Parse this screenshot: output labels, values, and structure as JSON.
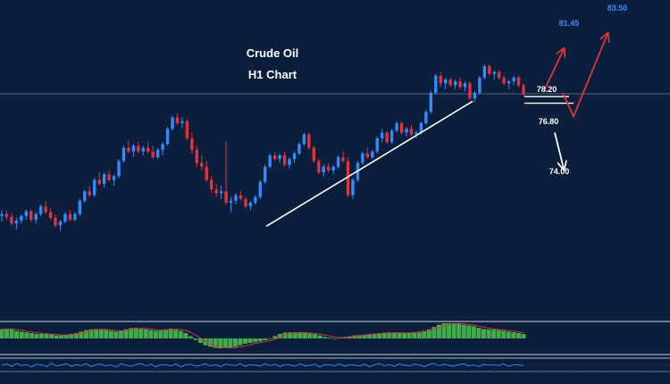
{
  "chart_data": {
    "type": "candlestick",
    "title": "Crude Oil",
    "subtitle": "H1 Chart",
    "colors": {
      "background": "#0b1f3d",
      "up_candle": "#2e8dff",
      "down_candle": "#e2323a",
      "trendline": "#ffffff",
      "bull_arrow": "#e2323a",
      "bear_arrow": "#ffffff",
      "macd_histogram": "#3fae49",
      "macd_signal": "#e2323a",
      "oscillator": "#2e8dff",
      "panel_border": "#8a96a8"
    },
    "levels": [
      {
        "label": "83.50",
        "value": 83.5,
        "style": "blue"
      },
      {
        "label": "81.45",
        "value": 81.45,
        "style": "blue"
      },
      {
        "label": "78.20",
        "value": 78.2,
        "style": "white"
      },
      {
        "label": "76.80",
        "value": 76.8,
        "style": "white"
      },
      {
        "label": "74.00",
        "value": 74.0,
        "style": "white"
      }
    ],
    "current_price_line": 79.05,
    "ylim": [
      67.5,
      84.0
    ],
    "ohlc": [
      [
        72.6,
        72.9,
        72.3,
        72.7
      ],
      [
        72.7,
        72.9,
        72.4,
        72.55
      ],
      [
        72.55,
        72.75,
        72.1,
        72.2
      ],
      [
        72.2,
        72.5,
        71.9,
        72.35
      ],
      [
        72.35,
        72.7,
        72.2,
        72.6
      ],
      [
        72.6,
        72.95,
        72.4,
        72.85
      ],
      [
        72.85,
        72.95,
        72.3,
        72.4
      ],
      [
        72.4,
        72.8,
        72.2,
        72.7
      ],
      [
        72.7,
        73.2,
        72.6,
        73.1
      ],
      [
        73.1,
        73.4,
        72.7,
        72.8
      ],
      [
        72.8,
        73.0,
        72.4,
        72.5
      ],
      [
        72.5,
        72.7,
        72.0,
        72.1
      ],
      [
        72.1,
        72.4,
        71.8,
        72.3
      ],
      [
        72.3,
        72.8,
        72.2,
        72.7
      ],
      [
        72.7,
        72.9,
        72.3,
        72.4
      ],
      [
        72.4,
        72.8,
        72.3,
        72.7
      ],
      [
        72.7,
        73.5,
        72.6,
        73.4
      ],
      [
        73.4,
        74.0,
        73.3,
        73.9
      ],
      [
        73.9,
        74.2,
        73.6,
        73.7
      ],
      [
        73.7,
        74.6,
        73.6,
        74.5
      ],
      [
        74.5,
        74.9,
        74.2,
        74.3
      ],
      [
        74.3,
        74.9,
        74.1,
        74.8
      ],
      [
        74.8,
        75.0,
        74.4,
        74.5
      ],
      [
        74.5,
        74.8,
        74.2,
        74.7
      ],
      [
        74.7,
        75.6,
        74.6,
        75.5
      ],
      [
        75.5,
        76.3,
        75.4,
        76.2
      ],
      [
        76.2,
        76.6,
        75.9,
        76.0
      ],
      [
        76.0,
        76.4,
        75.7,
        76.3
      ],
      [
        76.3,
        76.5,
        75.9,
        76.0
      ],
      [
        76.0,
        76.3,
        75.8,
        76.2
      ],
      [
        76.2,
        76.5,
        75.9,
        76.0
      ],
      [
        76.0,
        76.3,
        75.6,
        75.7
      ],
      [
        75.7,
        76.2,
        75.6,
        76.1
      ],
      [
        76.1,
        76.5,
        75.8,
        76.4
      ],
      [
        76.4,
        77.3,
        76.3,
        77.2
      ],
      [
        77.2,
        77.9,
        77.1,
        77.8
      ],
      [
        77.8,
        78.0,
        77.4,
        77.5
      ],
      [
        77.5,
        77.8,
        77.2,
        77.6
      ],
      [
        77.6,
        77.7,
        76.6,
        76.7
      ],
      [
        76.7,
        77.0,
        75.9,
        76.1
      ],
      [
        76.1,
        76.3,
        75.2,
        75.4
      ],
      [
        75.4,
        75.8,
        75.0,
        75.2
      ],
      [
        75.2,
        75.5,
        74.4,
        74.5
      ],
      [
        74.5,
        74.7,
        73.8,
        74.0
      ],
      [
        74.0,
        74.3,
        73.6,
        73.8
      ],
      [
        73.8,
        74.2,
        73.5,
        73.9
      ],
      [
        73.9,
        76.5,
        73.2,
        73.3
      ],
      [
        73.3,
        73.6,
        72.8,
        73.4
      ],
      [
        73.4,
        73.8,
        73.2,
        73.7
      ],
      [
        73.7,
        73.9,
        73.4,
        73.5
      ],
      [
        73.5,
        73.6,
        73.0,
        73.1
      ],
      [
        73.1,
        73.4,
        72.9,
        73.3
      ],
      [
        73.3,
        73.7,
        73.2,
        73.6
      ],
      [
        73.6,
        74.5,
        73.5,
        74.4
      ],
      [
        74.4,
        75.3,
        74.3,
        75.2
      ],
      [
        75.2,
        75.9,
        75.1,
        75.8
      ],
      [
        75.8,
        76.0,
        75.5,
        75.6
      ],
      [
        75.6,
        75.9,
        75.4,
        75.8
      ],
      [
        75.8,
        76.0,
        75.2,
        75.3
      ],
      [
        75.3,
        75.7,
        75.1,
        75.6
      ],
      [
        75.6,
        76.0,
        75.4,
        75.9
      ],
      [
        75.9,
        76.5,
        75.8,
        76.4
      ],
      [
        76.4,
        77.0,
        76.3,
        76.9
      ],
      [
        76.9,
        77.0,
        76.1,
        76.2
      ],
      [
        76.2,
        76.3,
        75.4,
        75.5
      ],
      [
        75.5,
        75.6,
        74.8,
        74.9
      ],
      [
        74.9,
        75.3,
        74.7,
        75.2
      ],
      [
        75.2,
        75.4,
        74.9,
        75.0
      ],
      [
        75.0,
        75.3,
        74.8,
        75.2
      ],
      [
        75.2,
        75.8,
        75.1,
        75.7
      ],
      [
        75.7,
        76.0,
        75.4,
        75.5
      ],
      [
        75.5,
        75.7,
        73.6,
        73.7
      ],
      [
        73.7,
        74.6,
        73.5,
        74.5
      ],
      [
        74.5,
        75.5,
        74.4,
        75.4
      ],
      [
        75.4,
        76.0,
        75.3,
        75.9
      ],
      [
        75.9,
        76.2,
        75.6,
        75.7
      ],
      [
        75.7,
        76.1,
        75.6,
        76.0
      ],
      [
        76.0,
        76.8,
        75.9,
        76.7
      ],
      [
        76.7,
        77.2,
        76.5,
        77.0
      ],
      [
        77.0,
        77.1,
        76.4,
        76.5
      ],
      [
        76.5,
        77.2,
        76.4,
        77.1
      ],
      [
        77.1,
        77.6,
        77.0,
        77.5
      ],
      [
        77.5,
        77.6,
        76.9,
        77.0
      ],
      [
        77.0,
        77.3,
        76.8,
        77.2
      ],
      [
        77.2,
        77.4,
        76.8,
        76.9
      ],
      [
        76.9,
        77.1,
        76.7,
        77.0
      ],
      [
        77.0,
        77.6,
        76.9,
        77.5
      ],
      [
        77.5,
        78.2,
        77.4,
        78.1
      ],
      [
        78.1,
        79.2,
        78.0,
        79.1
      ],
      [
        79.1,
        80.1,
        79.0,
        80.0
      ],
      [
        80.0,
        80.2,
        79.4,
        79.6
      ],
      [
        79.6,
        79.9,
        79.3,
        79.8
      ],
      [
        79.8,
        79.9,
        79.4,
        79.5
      ],
      [
        79.5,
        79.8,
        79.3,
        79.7
      ],
      [
        79.7,
        79.9,
        79.3,
        79.4
      ],
      [
        79.4,
        79.7,
        79.2,
        79.6
      ],
      [
        79.6,
        79.7,
        78.7,
        78.8
      ],
      [
        78.8,
        79.2,
        78.6,
        79.1
      ],
      [
        79.1,
        80.0,
        79.0,
        79.9
      ],
      [
        79.9,
        80.6,
        79.8,
        80.5
      ],
      [
        80.5,
        80.6,
        80.0,
        80.1
      ],
      [
        80.1,
        80.3,
        79.8,
        80.2
      ],
      [
        80.2,
        80.3,
        79.8,
        79.9
      ],
      [
        79.9,
        80.0,
        79.5,
        79.6
      ],
      [
        79.6,
        79.8,
        79.3,
        79.7
      ],
      [
        79.7,
        80.0,
        79.5,
        79.9
      ],
      [
        79.9,
        80.0,
        79.4,
        79.5
      ],
      [
        79.5,
        79.6,
        78.9,
        79.0
      ]
    ],
    "macd_hist": [
      0.6,
      0.65,
      0.6,
      0.5,
      0.45,
      0.4,
      0.35,
      0.3,
      0.3,
      0.3,
      0.25,
      0.2,
      0.2,
      0.25,
      0.3,
      0.35,
      0.45,
      0.55,
      0.6,
      0.62,
      0.6,
      0.55,
      0.5,
      0.45,
      0.5,
      0.6,
      0.68,
      0.7,
      0.65,
      0.6,
      0.55,
      0.5,
      0.55,
      0.6,
      0.65,
      0.62,
      0.5,
      0.35,
      0.15,
      -0.1,
      -0.3,
      -0.45,
      -0.55,
      -0.62,
      -0.65,
      -0.62,
      -0.6,
      -0.55,
      -0.45,
      -0.35,
      -0.3,
      -0.25,
      -0.2,
      -0.12,
      0.0,
      0.15,
      0.3,
      0.38,
      0.4,
      0.4,
      0.38,
      0.35,
      0.32,
      0.28,
      0.2,
      0.1,
      0.05,
      0.0,
      0.05,
      0.1,
      0.15,
      0.2,
      0.22,
      0.25,
      0.3,
      0.32,
      0.35,
      0.38,
      0.4,
      0.38,
      0.35,
      0.35,
      0.38,
      0.42,
      0.45,
      0.5,
      0.6,
      0.75,
      0.9,
      1.0,
      1.0,
      0.98,
      0.95,
      0.9,
      0.85,
      0.8,
      0.7,
      0.62,
      0.6,
      0.58,
      0.55,
      0.5,
      0.45,
      0.4,
      0.35,
      0.3
    ],
    "oscillator": [
      0.0,
      0.4,
      -0.3,
      0.5,
      -0.1,
      0.2,
      -0.5,
      0.3,
      0.1,
      -0.4,
      0.6,
      -0.2,
      0.1,
      0.4,
      -0.3,
      0.2,
      -0.1,
      0.5,
      -0.4,
      0.2,
      0.3,
      -0.2,
      0.1,
      -0.5,
      0.4,
      0.0,
      -0.3,
      0.2,
      0.5,
      -0.1,
      0.3,
      -0.4,
      0.1,
      0.2,
      -0.2,
      0.4,
      -0.5,
      0.1,
      0.3,
      -0.3,
      0.0,
      0.4,
      -0.2,
      0.2,
      -0.4,
      0.3,
      0.1,
      -0.1,
      0.5,
      -0.3,
      0.2,
      0.0,
      -0.2,
      0.4,
      -0.1,
      0.3,
      -0.4,
      0.2,
      0.1,
      -0.3,
      0.4,
      -0.2,
      0.0,
      0.3,
      -0.5,
      0.2,
      0.1,
      -0.1,
      0.4,
      -0.3,
      0.2,
      0.0,
      -0.2,
      0.3,
      -0.4,
      0.1,
      0.5,
      -0.1,
      0.2,
      -0.3,
      0.4,
      0.0,
      -0.2,
      0.3,
      0.1,
      -0.4,
      0.2,
      0.5,
      -0.1,
      0.3,
      0.0,
      -0.3,
      0.2,
      0.4,
      -0.2,
      0.1,
      -0.4,
      0.3,
      0.0,
      0.2,
      -0.1,
      0.4,
      -0.3,
      0.1,
      0.2,
      -0.2
    ]
  }
}
